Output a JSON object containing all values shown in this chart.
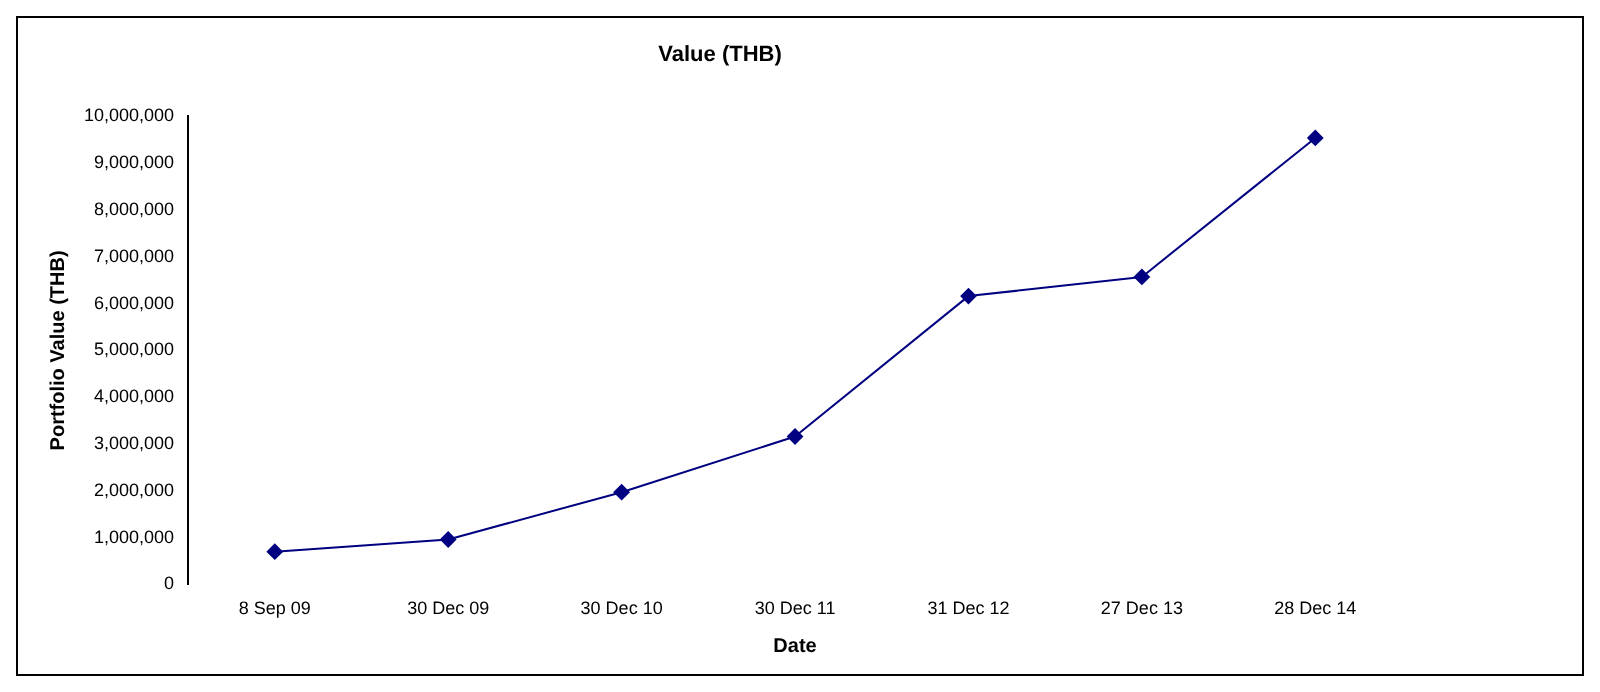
{
  "chart_data": {
    "type": "line",
    "title": "Value (THB)",
    "xlabel": "Date",
    "ylabel": "Portfolio Value (THB)",
    "categories": [
      "8 Sep 09",
      "30 Dec 09",
      "30 Dec 10",
      "30 Dec 11",
      "31 Dec 12",
      "27 Dec 13",
      "28 Dec 14"
    ],
    "series": [
      {
        "color": "#000080",
        "values": [
          700000,
          960000,
          1970000,
          3160000,
          6160000,
          6570000,
          9540000
        ]
      }
    ],
    "ylim": [
      0,
      10000000
    ],
    "yticks": [
      0,
      {
        "value": 1000000,
        "label": "1,000,000"
      },
      {
        "value": 2000000,
        "label": "2,000,000"
      },
      {
        "value": 3000000,
        "label": "3,000,000"
      },
      {
        "value": 4000000,
        "label": "4,000,000"
      },
      {
        "value": 5000000,
        "label": "5,000,000"
      },
      {
        "value": 6000000,
        "label": "6,000,000"
      },
      {
        "value": 7000000,
        "label": "7,000,000"
      },
      {
        "value": 8000000,
        "label": "8,000,000"
      },
      {
        "value": 9000000,
        "label": "9,000,000"
      },
      {
        "value": 10000000,
        "label": "10,000,000"
      }
    ],
    "grid": false,
    "legend": false,
    "marker": "diamond",
    "line_style": "solid"
  }
}
